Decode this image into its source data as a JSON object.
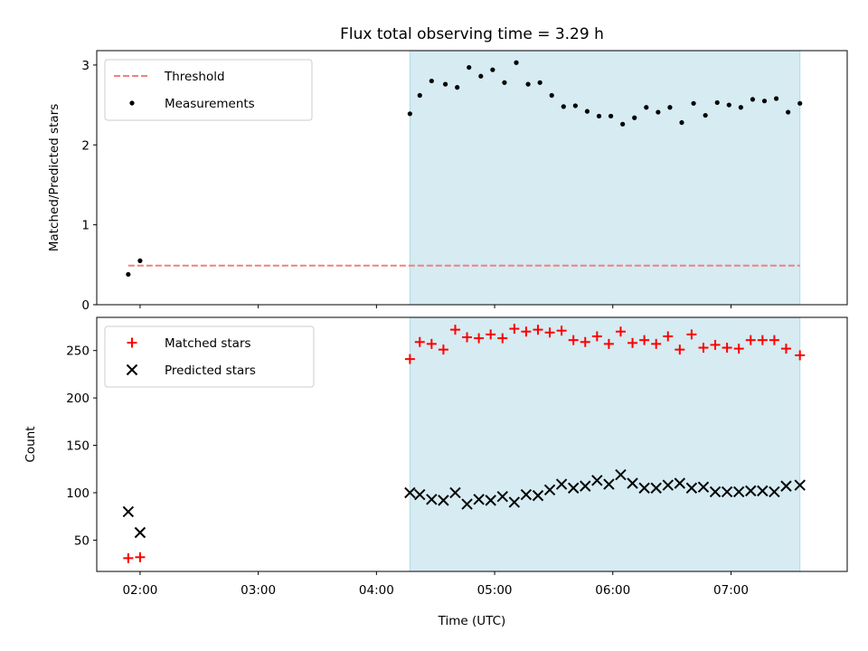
{
  "chart_data": {
    "type": "scatter",
    "title": "Flux total observing time = 3.29 h",
    "xlabel": "Time (UTC)",
    "xlim": [
      "01:38",
      "07:59"
    ],
    "xticks": [
      "02:00",
      "03:00",
      "04:00",
      "05:00",
      "06:00",
      "07:00"
    ],
    "shaded_interval": {
      "start": "04:17",
      "end": "07:35",
      "color": "#add8e6"
    },
    "panels": [
      {
        "ylabel": "Matched/Predicted stars",
        "ylim": [
          0,
          3.18
        ],
        "yticks": [
          "0",
          "1",
          "2",
          "3"
        ],
        "legend_position": "upper-left",
        "series": [
          {
            "name": "Threshold",
            "kind": "line",
            "style": "dashed",
            "color": "#f08080",
            "x": [
              "01:54",
              "07:35"
            ],
            "y": [
              0.49,
              0.49
            ]
          },
          {
            "name": "Measurements",
            "kind": "dot",
            "color": "#000000",
            "x": [
              "01:54",
              "02:00",
              "04:17",
              "04:22",
              "04:28",
              "04:35",
              "04:41",
              "04:47",
              "04:53",
              "04:59",
              "05:05",
              "05:11",
              "05:17",
              "05:23",
              "05:29",
              "05:35",
              "05:41",
              "05:47",
              "05:53",
              "05:59",
              "06:05",
              "06:11",
              "06:17",
              "06:23",
              "06:29",
              "06:35",
              "06:41",
              "06:47",
              "06:53",
              "06:59",
              "07:05",
              "07:11",
              "07:17",
              "07:23",
              "07:29",
              "07:35"
            ],
            "y": [
              0.38,
              0.55,
              2.39,
              2.62,
              2.8,
              2.76,
              2.72,
              2.97,
              2.86,
              2.94,
              2.78,
              3.03,
              2.76,
              2.78,
              2.62,
              2.48,
              2.49,
              2.42,
              2.36,
              2.36,
              2.26,
              2.34,
              2.47,
              2.41,
              2.47,
              2.28,
              2.52,
              2.37,
              2.53,
              2.5,
              2.47,
              2.57,
              2.55,
              2.58,
              2.41,
              2.52
            ]
          }
        ]
      },
      {
        "ylabel": "Count",
        "ylim": [
          17,
          285
        ],
        "yticks": [
          "50",
          "100",
          "150",
          "200",
          "250"
        ],
        "legend_position": "upper-left",
        "series": [
          {
            "name": "Matched stars",
            "kind": "plus",
            "color": "#ff0000",
            "x": [
              "01:54",
              "02:00",
              "04:17",
              "04:22",
              "04:28",
              "04:34",
              "04:40",
              "04:46",
              "04:52",
              "04:58",
              "05:04",
              "05:10",
              "05:16",
              "05:22",
              "05:28",
              "05:34",
              "05:40",
              "05:46",
              "05:52",
              "05:58",
              "06:04",
              "06:10",
              "06:16",
              "06:22",
              "06:28",
              "06:34",
              "06:40",
              "06:46",
              "06:52",
              "06:58",
              "07:04",
              "07:10",
              "07:16",
              "07:22",
              "07:28",
              "07:35"
            ],
            "y": [
              31,
              32,
              241,
              259,
              257,
              251,
              272,
              264,
              263,
              267,
              263,
              273,
              270,
              272,
              269,
              271,
              261,
              259,
              265,
              257,
              270,
              258,
              261,
              257,
              265,
              251,
              267,
              253,
              256,
              253,
              252,
              261,
              261,
              261,
              252,
              245
            ]
          },
          {
            "name": "Predicted stars",
            "kind": "cross",
            "color": "#000000",
            "x": [
              "01:54",
              "02:00",
              "04:17",
              "04:22",
              "04:28",
              "04:34",
              "04:40",
              "04:46",
              "04:52",
              "04:58",
              "05:04",
              "05:10",
              "05:16",
              "05:22",
              "05:28",
              "05:34",
              "05:40",
              "05:46",
              "05:52",
              "05:58",
              "06:04",
              "06:10",
              "06:16",
              "06:22",
              "06:28",
              "06:34",
              "06:40",
              "06:46",
              "06:52",
              "06:58",
              "07:04",
              "07:10",
              "07:16",
              "07:22",
              "07:28",
              "07:35"
            ],
            "y": [
              80,
              58,
              100,
              98,
              93,
              92,
              100,
              88,
              93,
              92,
              96,
              90,
              98,
              97,
              103,
              109,
              105,
              107,
              113,
              109,
              119,
              110,
              105,
              105,
              108,
              110,
              105,
              106,
              101,
              101,
              101,
              102,
              102,
              101,
              107,
              108
            ]
          }
        ]
      }
    ]
  }
}
